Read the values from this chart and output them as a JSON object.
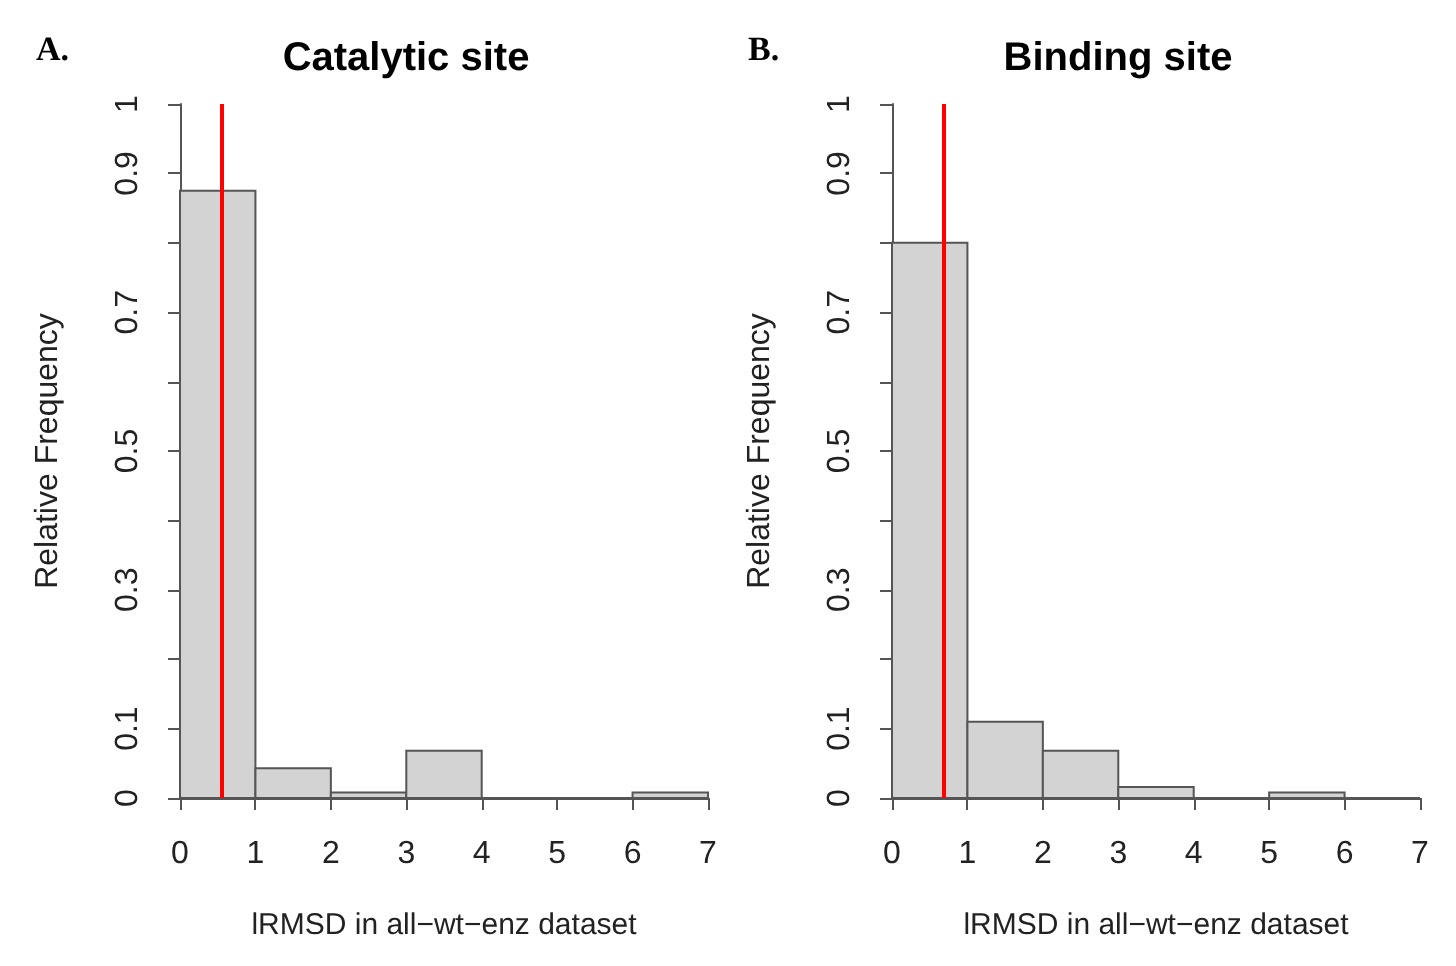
{
  "chart_data": [
    {
      "type": "histogram",
      "title": "Catalytic site",
      "xlabel": "lRMSD in all−wt−enz dataset",
      "ylabel": "Relative Frequency",
      "annotations": [
        "A."
      ],
      "color": "#d3d3d3",
      "bins": [
        0,
        1,
        2,
        3,
        4,
        5,
        6,
        7
      ],
      "values": [
        0.875,
        0.043,
        0.008,
        0.068,
        0,
        0,
        0.008
      ],
      "xlim": [
        0,
        7
      ],
      "xticks": [
        0,
        1,
        2,
        3,
        4,
        5,
        6,
        7
      ],
      "ylim": [
        0,
        1
      ],
      "yticks": [
        0,
        0.1,
        {
          "value": 0.2,
          "label": null
        },
        0.3,
        {
          "value": 0.4,
          "label": null
        },
        0.5,
        {
          "value": 0.6,
          "label": null
        },
        0.7,
        {
          "value": 0.8,
          "label": null
        },
        0.9,
        1
      ],
      "ref_lines": [
        {
          "axis": "x",
          "value": 0.56,
          "color": "#ff0000"
        }
      ],
      "grid": false
    },
    {
      "type": "histogram",
      "title": "Binding site",
      "xlabel": "lRMSD in all−wt−enz dataset",
      "ylabel": "Relative Frequency",
      "annotations": [
        "B."
      ],
      "color": "#d3d3d3",
      "bins": [
        0,
        1,
        2,
        3,
        4,
        5,
        6,
        7
      ],
      "values": [
        0.8,
        0.11,
        0.068,
        0.016,
        0,
        0.008,
        0
      ],
      "xlim": [
        0,
        7
      ],
      "xticks": [
        0,
        1,
        2,
        3,
        4,
        5,
        6,
        7
      ],
      "ylim": [
        0,
        1
      ],
      "yticks": [
        0,
        0.1,
        {
          "value": 0.2,
          "label": null
        },
        0.3,
        {
          "value": 0.4,
          "label": null
        },
        0.5,
        {
          "value": 0.6,
          "label": null
        },
        0.7,
        {
          "value": 0.8,
          "label": null
        },
        0.9,
        1
      ],
      "ref_lines": [
        {
          "axis": "x",
          "value": 0.67,
          "color": "#ff0000"
        }
      ],
      "grid": false
    }
  ]
}
